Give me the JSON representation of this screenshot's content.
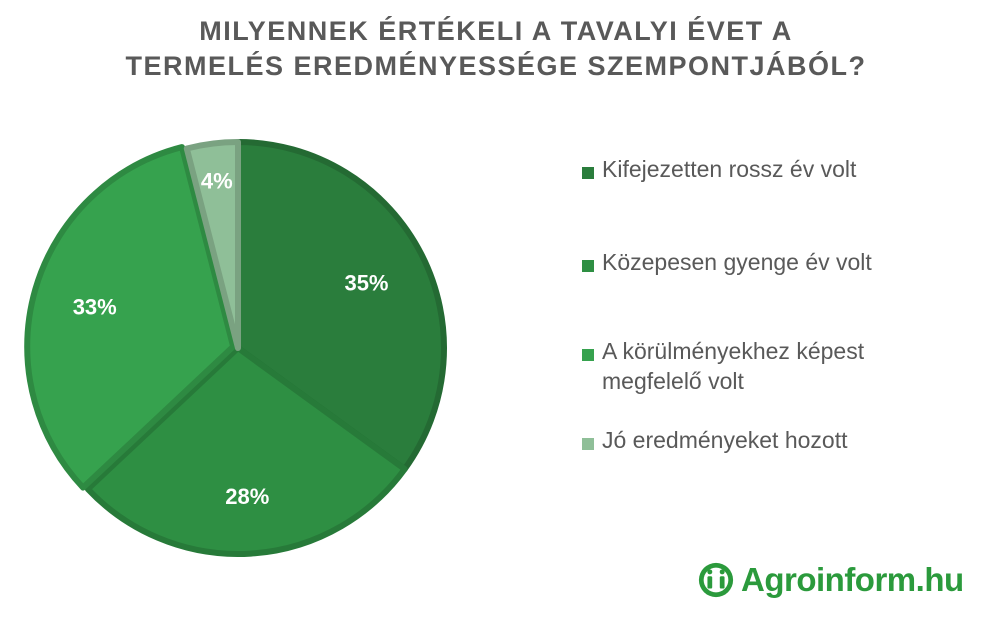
{
  "chart_data": {
    "type": "pie",
    "title_lines": [
      "MILYENNEK ÉRTÉKELI A TAVALYI ÉVET A",
      "TERMELÉS EREDMÉNYESSÉGE SZEMPONTJÁBÓL?"
    ],
    "categories": [
      "Kifejezetten rossz év volt",
      "Közepesen gyenge év volt",
      "A körülményekhez képest megfelelő volt",
      "Jó eredményeket hozott"
    ],
    "legend_lines": [
      [
        "Kifejezetten rossz év volt"
      ],
      [
        "Közepesen gyenge év volt"
      ],
      [
        "A körülményekhez képest",
        "megfelelő volt"
      ],
      [
        "Jó eredményeket hozott"
      ]
    ],
    "values": [
      35,
      28,
      33,
      4
    ],
    "data_labels": [
      "35%",
      "28%",
      "33%",
      "4%"
    ],
    "colors": [
      "#2a7d3c",
      "#2e8f43",
      "#36a24e",
      "#8fbf98"
    ],
    "legend_placement": "right",
    "start_angle_deg": 0,
    "direction": "clockwise"
  },
  "brand": {
    "text": "Agroinform.hu",
    "icon": "agroinform-logo-icon",
    "color": "#2b9a3c"
  }
}
